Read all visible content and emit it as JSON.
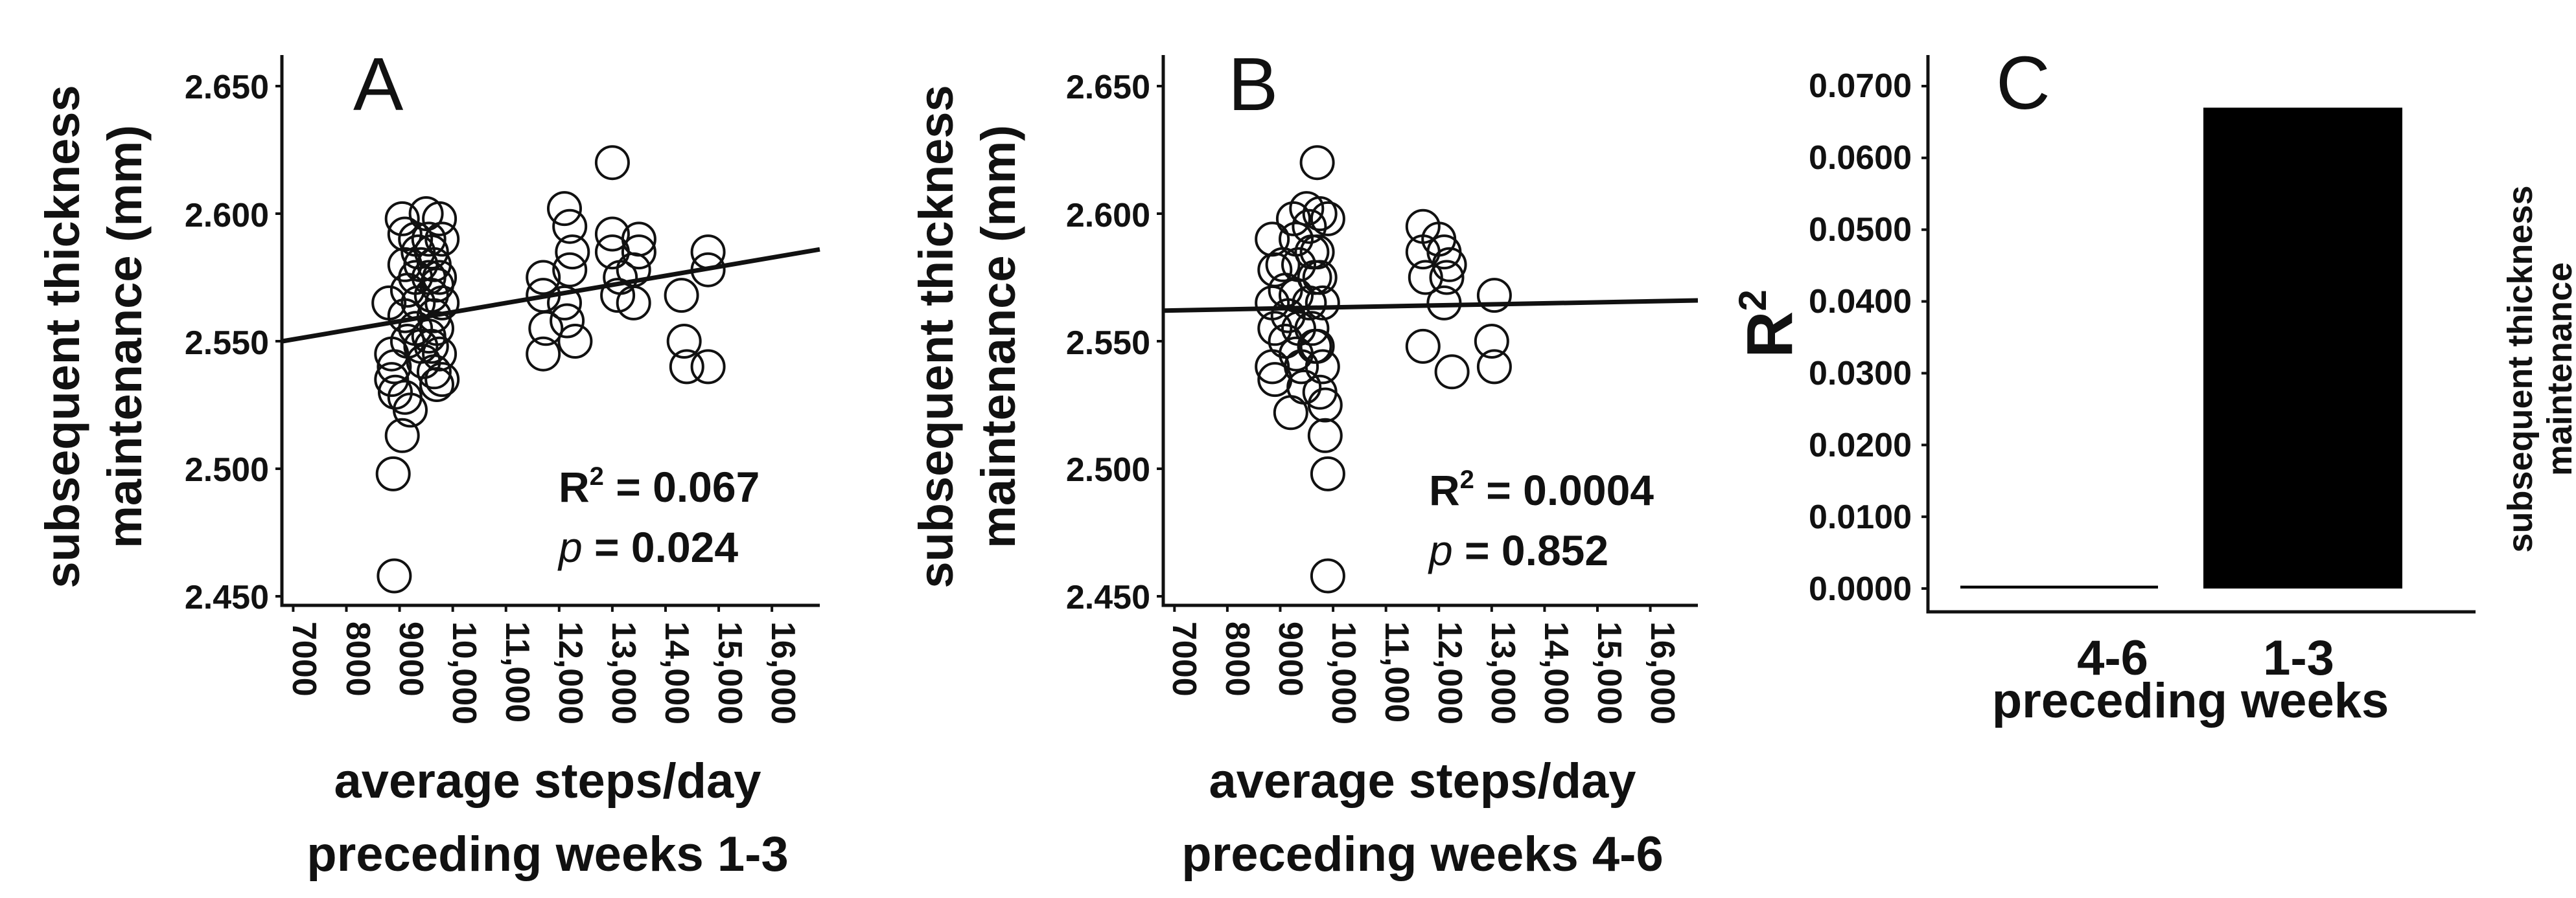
{
  "chart_data": [
    {
      "type": "scatter",
      "panel_label": "A",
      "ylabel": [
        "subsequent thickness",
        "maintenance (mm)"
      ],
      "xlabel": [
        "average steps/day",
        "preceding weeks 1-3"
      ],
      "y_ticks": [
        "2.650",
        "2.600",
        "2.550",
        "2.500",
        "2.450"
      ],
      "x_ticks": [
        "7000",
        "8000",
        "9000",
        "10,000",
        "11,000",
        "12,000",
        "13,000",
        "14,000",
        "15,000",
        "16,000"
      ],
      "xlim": [
        6800,
        16900
      ],
      "ylim": [
        2.443,
        2.662
      ],
      "stat_r2_prefix": "R",
      "stat_r2_sup": "2",
      "stat_r2_value": " = 0.067",
      "stat_p_label": "p",
      "stat_p_value": " = 0.024",
      "fit": {
        "x": [
          6800,
          16900
        ],
        "y": [
          2.55,
          2.586
        ]
      },
      "points": [
        [
          8800,
          2.565
        ],
        [
          8850,
          2.545
        ],
        [
          8900,
          2.54
        ],
        [
          8850,
          2.535
        ],
        [
          8920,
          2.53
        ],
        [
          8880,
          2.498
        ],
        [
          8900,
          2.458
        ],
        [
          9050,
          2.598
        ],
        [
          9100,
          2.592
        ],
        [
          9100,
          2.58
        ],
        [
          9150,
          2.57
        ],
        [
          9100,
          2.56
        ],
        [
          9150,
          2.55
        ],
        [
          9100,
          2.528
        ],
        [
          9050,
          2.513
        ],
        [
          9200,
          2.523
        ],
        [
          9300,
          2.59
        ],
        [
          9350,
          2.585
        ],
        [
          9300,
          2.575
        ],
        [
          9400,
          2.58
        ],
        [
          9350,
          2.565
        ],
        [
          9300,
          2.555
        ],
        [
          9400,
          2.548
        ],
        [
          9450,
          2.542
        ],
        [
          9500,
          2.6
        ],
        [
          9550,
          2.59
        ],
        [
          9600,
          2.585
        ],
        [
          9650,
          2.58
        ],
        [
          9550,
          2.575
        ],
        [
          9600,
          2.568
        ],
        [
          9700,
          2.572
        ],
        [
          9650,
          2.56
        ],
        [
          9700,
          2.555
        ],
        [
          9600,
          2.548
        ],
        [
          9650,
          2.538
        ],
        [
          9700,
          2.533
        ],
        [
          9750,
          2.598
        ],
        [
          9800,
          2.59
        ],
        [
          9750,
          2.575
        ],
        [
          9800,
          2.565
        ],
        [
          9750,
          2.545
        ],
        [
          9800,
          2.535
        ],
        [
          9550,
          2.552
        ],
        [
          11700,
          2.575
        ],
        [
          11700,
          2.568
        ],
        [
          11750,
          2.555
        ],
        [
          11700,
          2.545
        ],
        [
          12100,
          2.602
        ],
        [
          12200,
          2.595
        ],
        [
          12250,
          2.585
        ],
        [
          12200,
          2.578
        ],
        [
          12100,
          2.565
        ],
        [
          12150,
          2.558
        ],
        [
          12300,
          2.55
        ],
        [
          13000,
          2.62
        ],
        [
          13000,
          2.592
        ],
        [
          13000,
          2.585
        ],
        [
          13150,
          2.575
        ],
        [
          13100,
          2.568
        ],
        [
          13500,
          2.59
        ],
        [
          13500,
          2.585
        ],
        [
          13400,
          2.578
        ],
        [
          13400,
          2.565
        ],
        [
          14300,
          2.568
        ],
        [
          14350,
          2.55
        ],
        [
          14400,
          2.54
        ],
        [
          14800,
          2.585
        ],
        [
          14800,
          2.578
        ],
        [
          14800,
          2.54
        ]
      ]
    },
    {
      "type": "scatter",
      "panel_label": "B",
      "ylabel": [
        "subsequent thickness",
        "maintenance (mm)"
      ],
      "xlabel": [
        "average steps/day",
        "preceding weeks 4-6"
      ],
      "y_ticks": [
        "2.650",
        "2.600",
        "2.550",
        "2.500",
        "2.450"
      ],
      "x_ticks": [
        "7000",
        "8000",
        "9000",
        "10,000",
        "11,000",
        "12,000",
        "13,000",
        "14,000",
        "15,000",
        "16,000"
      ],
      "xlim": [
        6800,
        16900
      ],
      "ylim": [
        2.443,
        2.662
      ],
      "stat_r2_prefix": "R",
      "stat_r2_sup": "2",
      "stat_r2_value": " = 0.0004",
      "stat_p_label": "p",
      "stat_p_value": " = 0.852",
      "fit": {
        "x": [
          6800,
          16900
        ],
        "y": [
          2.562,
          2.566
        ]
      },
      "points": [
        [
          8850,
          2.59
        ],
        [
          8900,
          2.578
        ],
        [
          8850,
          2.565
        ],
        [
          8900,
          2.555
        ],
        [
          8850,
          2.54
        ],
        [
          8900,
          2.535
        ],
        [
          9050,
          2.58
        ],
        [
          9100,
          2.57
        ],
        [
          9150,
          2.56
        ],
        [
          9100,
          2.55
        ],
        [
          9200,
          2.522
        ],
        [
          9250,
          2.598
        ],
        [
          9300,
          2.59
        ],
        [
          9350,
          2.58
        ],
        [
          9300,
          2.568
        ],
        [
          9350,
          2.555
        ],
        [
          9300,
          2.545
        ],
        [
          9450,
          2.532
        ],
        [
          9400,
          2.54
        ],
        [
          9500,
          2.602
        ],
        [
          9550,
          2.595
        ],
        [
          9600,
          2.585
        ],
        [
          9650,
          2.575
        ],
        [
          9550,
          2.565
        ],
        [
          9600,
          2.555
        ],
        [
          9650,
          2.548
        ],
        [
          9700,
          2.62
        ],
        [
          9750,
          2.6
        ],
        [
          9700,
          2.585
        ],
        [
          9750,
          2.575
        ],
        [
          9800,
          2.565
        ],
        [
          9700,
          2.548
        ],
        [
          9800,
          2.54
        ],
        [
          9750,
          2.53
        ],
        [
          9850,
          2.525
        ],
        [
          9850,
          2.513
        ],
        [
          9900,
          2.498
        ],
        [
          9900,
          2.458
        ],
        [
          9900,
          2.598
        ],
        [
          11700,
          2.595
        ],
        [
          11700,
          2.585
        ],
        [
          11750,
          2.575
        ],
        [
          11700,
          2.548
        ],
        [
          12000,
          2.59
        ],
        [
          12100,
          2.585
        ],
        [
          12200,
          2.58
        ],
        [
          12150,
          2.575
        ],
        [
          12100,
          2.565
        ],
        [
          12250,
          2.538
        ],
        [
          13050,
          2.568
        ],
        [
          13000,
          2.55
        ],
        [
          13050,
          2.54
        ]
      ]
    },
    {
      "type": "bar",
      "panel_label": "C",
      "ylabel": "R",
      "ylabel_sup": "2",
      "y_ticks": [
        "0.0700",
        "0.0600",
        "0.0500",
        "0.0400",
        "0.0300",
        "0.0200",
        "0.0100",
        "0.0000"
      ],
      "ylim": [
        0,
        0.0725
      ],
      "categories": [
        "4-6",
        "1-3"
      ],
      "values": [
        0.0004,
        0.067
      ],
      "xlabel": "preceding weeks",
      "side_label": [
        "subsequent thickness",
        "maintenance"
      ]
    }
  ]
}
